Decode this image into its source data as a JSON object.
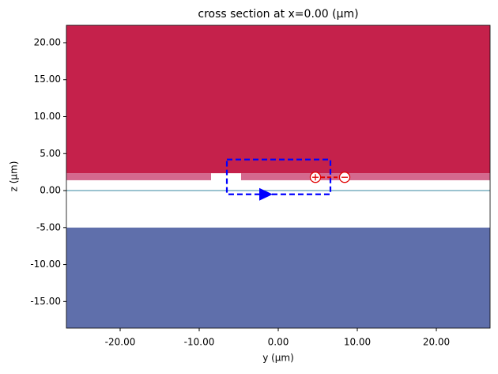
{
  "chart_data": {
    "type": "cross-section",
    "title": "cross section at x=0.00 (μm)",
    "x_label": "y (μm)",
    "y_label": "z (μm)",
    "xlim": [
      -26.8,
      26.8
    ],
    "ylim": [
      -18.6,
      22.35
    ],
    "xticks": [
      {
        "value": -20,
        "label": "-20.00"
      },
      {
        "value": -10,
        "label": "-10.00"
      },
      {
        "value": 0,
        "label": "0.00"
      },
      {
        "value": 10,
        "label": "10.00"
      },
      {
        "value": 20,
        "label": "20.00"
      }
    ],
    "yticks": [
      {
        "value": -15,
        "label": "-15.00"
      },
      {
        "value": -10,
        "label": "-10.00"
      },
      {
        "value": -5,
        "label": "-5.00"
      },
      {
        "value": 0,
        "label": "0.00"
      },
      {
        "value": 5,
        "label": "5.00"
      },
      {
        "value": 10,
        "label": "10.00"
      },
      {
        "value": 15,
        "label": "15.00"
      },
      {
        "value": 20,
        "label": "20.00"
      }
    ],
    "structures": [
      {
        "color": "#c5214b",
        "y": [
          -26.8,
          26.8
        ],
        "z": [
          2.35,
          22.35
        ]
      },
      {
        "color": "#d4698e",
        "y": [
          -26.8,
          -8.5
        ],
        "z": [
          1.4,
          2.35
        ]
      },
      {
        "color": "#d4698e",
        "y": [
          -4.7,
          26.8
        ],
        "z": [
          1.4,
          2.35
        ]
      },
      {
        "color": "#5f6fab",
        "y": [
          -26.8,
          26.8
        ],
        "z": [
          -18.6,
          -5
        ]
      }
    ],
    "interface": {
      "color": "#5f9fb3",
      "z": 0
    },
    "monitor": {
      "color": "#0000ff",
      "y": [
        -6.5,
        6.6
      ],
      "z": [
        -0.5,
        4.2
      ],
      "arrow": {
        "y": -1.6,
        "z": -0.5
      }
    },
    "port": {
      "color": "#e00000",
      "plus": {
        "y": 4.7,
        "z": 1.8
      },
      "minus": {
        "y": 8.4,
        "z": 1.8
      }
    }
  }
}
